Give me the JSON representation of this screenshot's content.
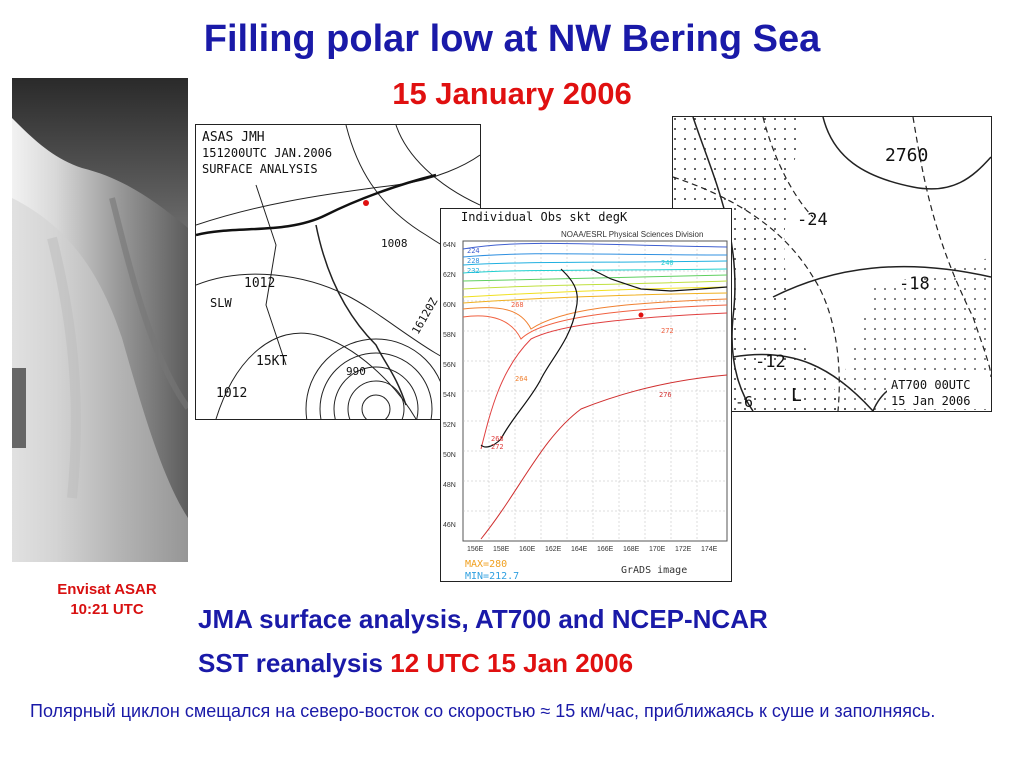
{
  "slide": {
    "title": "Filling polar low at NW Bering Sea",
    "subtitle": "15 January 2006"
  },
  "sar_image": {
    "caption_line1": "Envisat ASAR",
    "caption_line2": "10:21 UTC"
  },
  "jma_map": {
    "header_line1": "ASAS   JMH",
    "header_line2": "151200UTC JAN.2006",
    "header_line3": "SURFACE ANALYSIS",
    "labels": [
      "1012",
      "SLW",
      "15KT",
      "1012",
      "16120Z",
      "1008",
      "990"
    ]
  },
  "at700_map": {
    "labels": [
      "2760",
      "-24",
      "-18",
      "-12",
      "-6",
      "L"
    ],
    "badge_line1": "AT700 00UTC",
    "badge_line2": "15 Jan 2006"
  },
  "sst_map": {
    "title": "Individual Obs skt degK",
    "source": "NOAA/ESRL Physical Sciences Division",
    "max_label": "MAX=280",
    "min_label": "MIN=212.7",
    "footer": "GrADS image",
    "lat_ticks": [
      "64N",
      "62N",
      "60N",
      "58N",
      "56N",
      "54N",
      "52N",
      "50N",
      "48N",
      "46N"
    ],
    "lon_ticks": [
      "156E",
      "158E",
      "160E",
      "162E",
      "164E",
      "166E",
      "168E",
      "170E",
      "172E",
      "174E"
    ],
    "contour_labels": [
      "224",
      "228",
      "232",
      "240",
      "268",
      "264",
      "268",
      "272",
      "276",
      "272"
    ]
  },
  "captions": {
    "line1": "JMA surface analysis, AT700 and NCEP-NCAR",
    "line2_prefix": "SST reanalysis ",
    "line2_red": "12 UTC 15 Jan 2006",
    "russian": "Полярный циклон смещался на северо-восток со скоростью ≈ 15 км/час, приближаясь к суше и заполняясь."
  },
  "colors": {
    "title_blue": "#1a1aa8",
    "accent_red": "#e01010"
  }
}
